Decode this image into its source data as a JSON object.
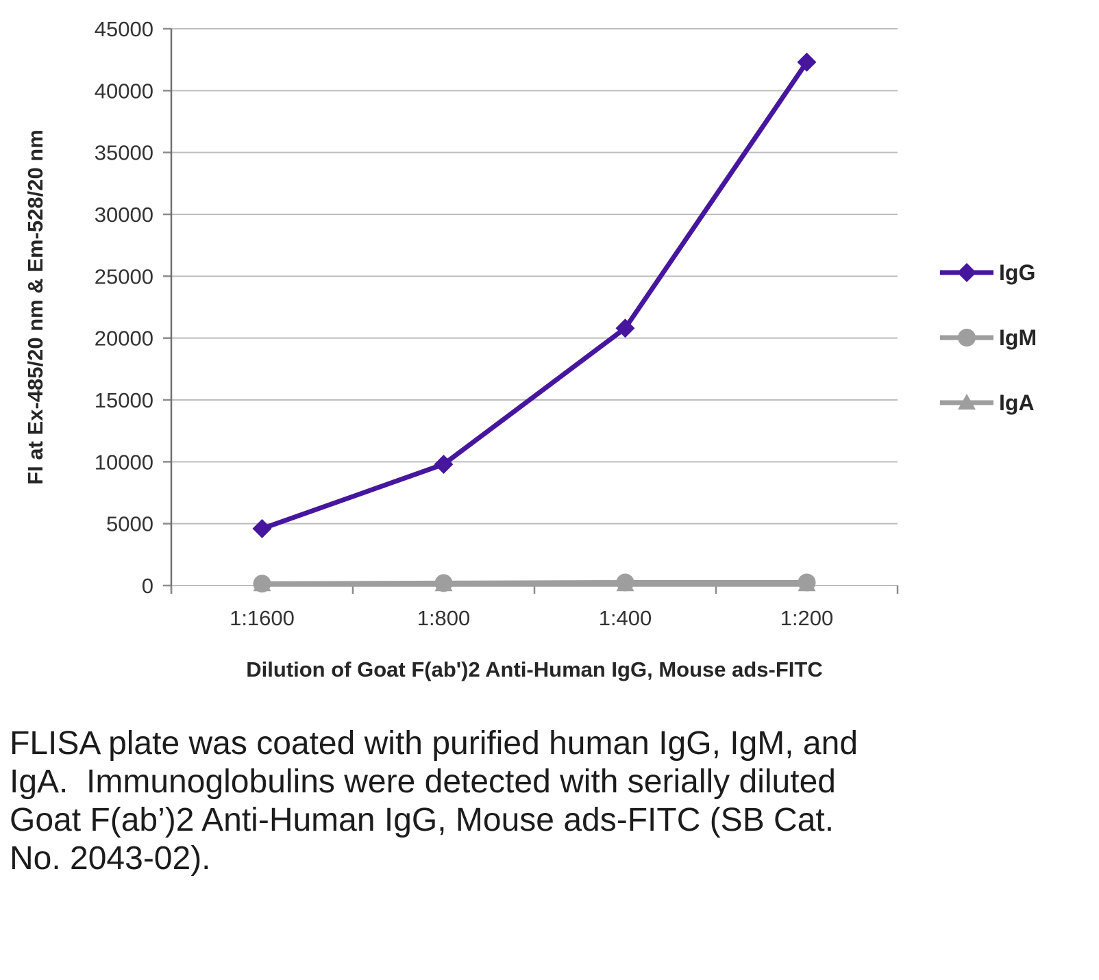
{
  "chart_data": {
    "type": "line",
    "categories": [
      "1:1600",
      "1:800",
      "1:400",
      "1:200"
    ],
    "series": [
      {
        "name": "IgG",
        "values": [
          4600,
          9800,
          20800,
          42300
        ],
        "color": "#46169e",
        "marker": "diamond"
      },
      {
        "name": "IgM",
        "values": [
          150,
          200,
          250,
          250
        ],
        "color": "#9e9e9e",
        "marker": "circle"
      },
      {
        "name": "IgA",
        "values": [
          100,
          100,
          100,
          100
        ],
        "color": "#9e9e9e",
        "marker": "triangle"
      }
    ],
    "title": "",
    "xlabel": "Dilution of Goat F(ab')2 Anti-Human IgG, Mouse ads-FITC",
    "ylabel": "FI at Ex-485/20 nm & Em-528/20 nm",
    "ylim": [
      0,
      45000
    ],
    "ytick_step": 5000,
    "ytick_labels": [
      "0",
      "5000",
      "10000",
      "15000",
      "20000",
      "25000",
      "30000",
      "35000",
      "40000",
      "45000"
    ],
    "grid": true,
    "legend_position": "right",
    "legend_entries": [
      "IgG",
      "IgM",
      "IgA"
    ]
  },
  "caption": "FLISA plate was coated with purified human IgG, IgM, and IgA.  Immunoglobulins were detected with serially diluted Goat F(ab’)2 Anti-Human IgG, Mouse ads-FITC (SB Cat. No. 2043-02)."
}
